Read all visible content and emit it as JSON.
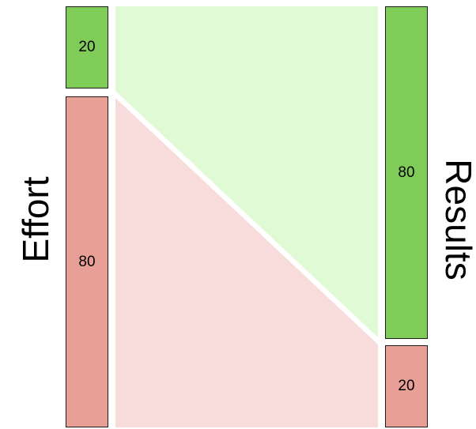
{
  "left_axis_label": "Effort",
  "right_axis_label": "Results",
  "colors": {
    "green_bar": "#80cc59",
    "red_bar": "#e8a096",
    "green_flow": "#e0fad6",
    "red_flow": "#f8dcdb",
    "stroke": "#1a1a1a"
  },
  "left_stack": [
    {
      "value": "20",
      "color_key": "green_bar"
    },
    {
      "value": "80",
      "color_key": "red_bar"
    }
  ],
  "right_stack": [
    {
      "value": "80",
      "color_key": "green_bar"
    },
    {
      "value": "20",
      "color_key": "red_bar"
    }
  ]
}
